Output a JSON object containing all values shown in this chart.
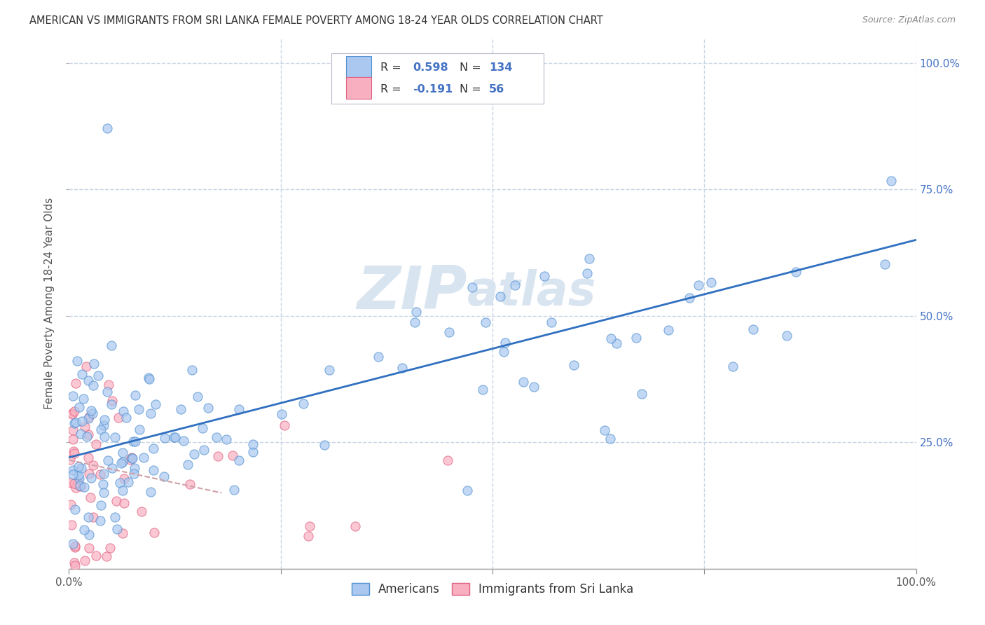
{
  "title": "AMERICAN VS IMMIGRANTS FROM SRI LANKA FEMALE POVERTY AMONG 18-24 YEAR OLDS CORRELATION CHART",
  "source": "Source: ZipAtlas.com",
  "ylabel": "Female Poverty Among 18-24 Year Olds",
  "xlim": [
    0,
    1.0
  ],
  "ylim": [
    0,
    1.05
  ],
  "color_americans": "#aac8f0",
  "color_americans_edge": "#5090d0",
  "color_sri_lanka": "#f8b0c0",
  "color_sri_lanka_edge": "#e06080",
  "color_line_americans": "#3070c0",
  "color_line_sri_lanka": "#d0a0a8",
  "background_color": "#ffffff",
  "grid_color": "#c8d4e4",
  "watermark_color": "#d8e4f0",
  "trend_a_x0": 0.0,
  "trend_a_y0": 0.22,
  "trend_a_x1": 1.0,
  "trend_a_y1": 0.65,
  "trend_s_x0": 0.0,
  "trend_s_y0": 0.215,
  "trend_s_x1": 0.18,
  "trend_s_y1": 0.15
}
